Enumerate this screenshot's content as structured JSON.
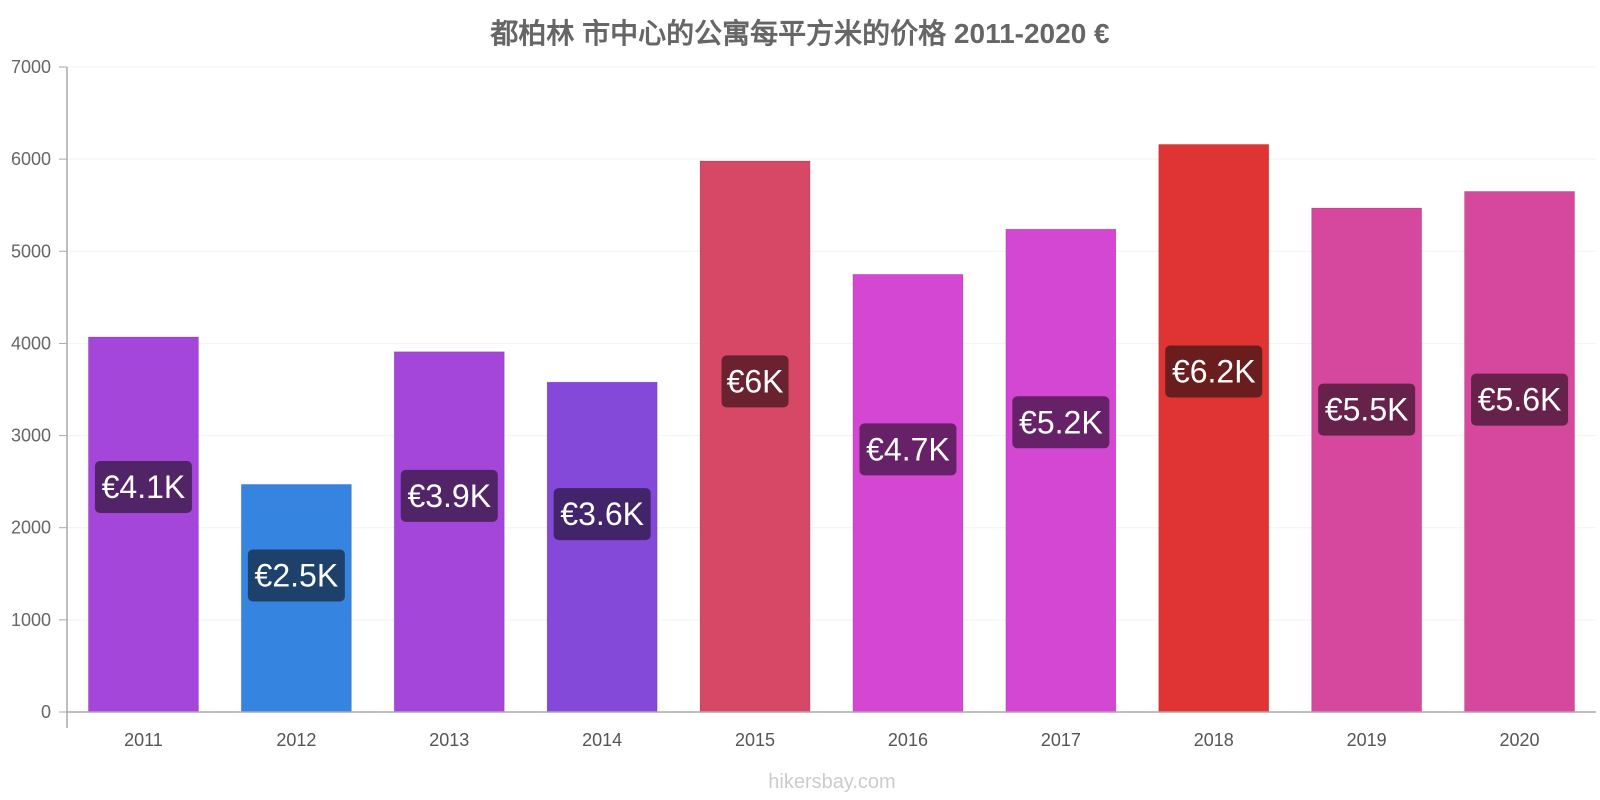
{
  "chart_data": {
    "type": "bar",
    "title": "都柏林 市中心的公寓每平方米的价格 2011-2020 €",
    "categories": [
      "2011",
      "2012",
      "2013",
      "2014",
      "2015",
      "2016",
      "2017",
      "2018",
      "2019",
      "2020"
    ],
    "values": [
      4070,
      2470,
      3910,
      3580,
      5980,
      4750,
      5240,
      6160,
      5470,
      5650
    ],
    "data_labels": [
      "€4.1K",
      "€2.5K",
      "€3.9K",
      "€3.6K",
      "€6K",
      "€4.7K",
      "€5.2K",
      "€6.2K",
      "€5.5K",
      "€5.6K"
    ],
    "colors": [
      "#a346d9",
      "#3584e0",
      "#a346d9",
      "#8549d9",
      "#d74866",
      "#d347d3",
      "#d347d3",
      "#e03434",
      "#d6479e",
      "#d6479e"
    ],
    "label_bg_colors": [
      "#512468",
      "#1d416b",
      "#512468",
      "#41246a",
      "#6a2231",
      "#672168",
      "#672168",
      "#6a1d1d",
      "#67224c",
      "#67224c"
    ],
    "ylim": [
      0,
      7000
    ],
    "yticks": [
      0,
      1000,
      2000,
      3000,
      4000,
      5000,
      6000,
      7000
    ],
    "xlabel": "",
    "ylabel": "",
    "grid": true,
    "legend": "none"
  },
  "watermark": "hikersbay.com"
}
